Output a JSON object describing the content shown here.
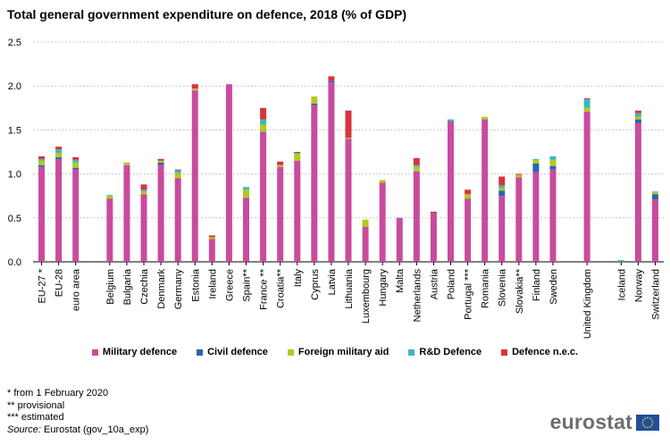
{
  "title": "Total general government expenditure on defence, 2018 (% of GDP)",
  "notes": [
    "* from 1 February 2020",
    "** provisional",
    "*** estimated"
  ],
  "source": {
    "label": "Source:",
    "text": " Eurostat  (gov_10a_exp)"
  },
  "logo": {
    "text": "eurostat"
  },
  "colors": {
    "Military defence": "#c84b9e",
    "Civil defence": "#2b64b0",
    "Foreign military aid": "#b5c71e",
    "R&D Defence": "#3fb5b8",
    "Defence n.e.c.": "#d9343c"
  },
  "chart_data": {
    "type": "bar",
    "stacked": true,
    "ylim": [
      0,
      2.5
    ],
    "yticks": [
      "0.0",
      "0.5",
      "1.0",
      "1.5",
      "2.0",
      "2.5"
    ],
    "grid": true,
    "legend": "bottom",
    "categories": [
      "EU-27 *",
      "EU-28",
      "euro area",
      "",
      "Belgium",
      "Bulgaria",
      "Czechia",
      "Denmark",
      "Germany",
      "Estonia",
      "Ireland",
      "Greece",
      "Spain**",
      "France **",
      "Croatia**",
      "Italy",
      "Cyprus",
      "Latvia",
      "Lithuania",
      "Luxembourg",
      "Hungary",
      "Malta",
      "Netherlands",
      "Austria",
      "Poland",
      "Portugal ***",
      "Romania",
      "Slovenia",
      "Slovakia**",
      "Finland",
      "Sweden",
      "",
      "United Kingdom",
      "",
      "Iceland",
      "Norway",
      "Switzerland"
    ],
    "series": [
      {
        "name": "Military defence",
        "values": [
          1.08,
          1.17,
          1.05,
          null,
          0.72,
          1.1,
          0.77,
          1.1,
          0.95,
          1.95,
          0.26,
          2.02,
          0.73,
          1.48,
          1.08,
          1.15,
          1.78,
          2.04,
          1.4,
          0.4,
          0.9,
          0.5,
          1.03,
          0.55,
          1.6,
          0.72,
          1.62,
          0.75,
          0.96,
          1.02,
          1.05,
          null,
          1.71,
          null,
          0.0,
          1.58,
          0.71
        ]
      },
      {
        "name": "Civil defence",
        "values": [
          0.02,
          0.02,
          0.02,
          null,
          0.0,
          0.0,
          0.0,
          0.03,
          0.0,
          0.0,
          0.0,
          0.0,
          0.0,
          0.0,
          0.0,
          0.0,
          0.02,
          0.02,
          0.0,
          0.0,
          0.0,
          0.0,
          0.0,
          0.0,
          0.0,
          0.0,
          0.0,
          0.06,
          0.0,
          0.1,
          0.04,
          null,
          0.0,
          null,
          0.0,
          0.04,
          0.06
        ]
      },
      {
        "name": "Foreign military aid",
        "values": [
          0.05,
          0.05,
          0.06,
          null,
          0.03,
          0.03,
          0.03,
          0.02,
          0.06,
          0.02,
          0.02,
          0.0,
          0.09,
          0.08,
          0.02,
          0.08,
          0.08,
          0.0,
          0.01,
          0.08,
          0.03,
          0.0,
          0.05,
          0.0,
          0.0,
          0.05,
          0.03,
          0.03,
          0.03,
          0.04,
          0.07,
          null,
          0.04,
          null,
          0.0,
          0.03,
          0.02
        ]
      },
      {
        "name": "R&D Defence",
        "values": [
          0.02,
          0.04,
          0.03,
          null,
          0.01,
          0.0,
          0.02,
          0.0,
          0.03,
          0.0,
          0.0,
          0.0,
          0.03,
          0.06,
          0.0,
          0.01,
          0.0,
          0.0,
          0.0,
          0.0,
          0.0,
          0.0,
          0.02,
          0.0,
          0.02,
          0.0,
          0.0,
          0.03,
          0.0,
          0.01,
          0.04,
          null,
          0.1,
          null,
          0.02,
          0.04,
          0.01
        ]
      },
      {
        "name": "Defence n.e.c.",
        "values": [
          0.03,
          0.03,
          0.03,
          null,
          0.0,
          0.0,
          0.06,
          0.02,
          0.01,
          0.05,
          0.02,
          0.0,
          0.0,
          0.13,
          0.04,
          0.01,
          0.0,
          0.05,
          0.31,
          0.0,
          0.0,
          0.0,
          0.08,
          0.02,
          0.0,
          0.05,
          0.0,
          0.1,
          0.01,
          0.0,
          0.0,
          null,
          0.01,
          null,
          0.0,
          0.03,
          0.0
        ]
      }
    ]
  }
}
